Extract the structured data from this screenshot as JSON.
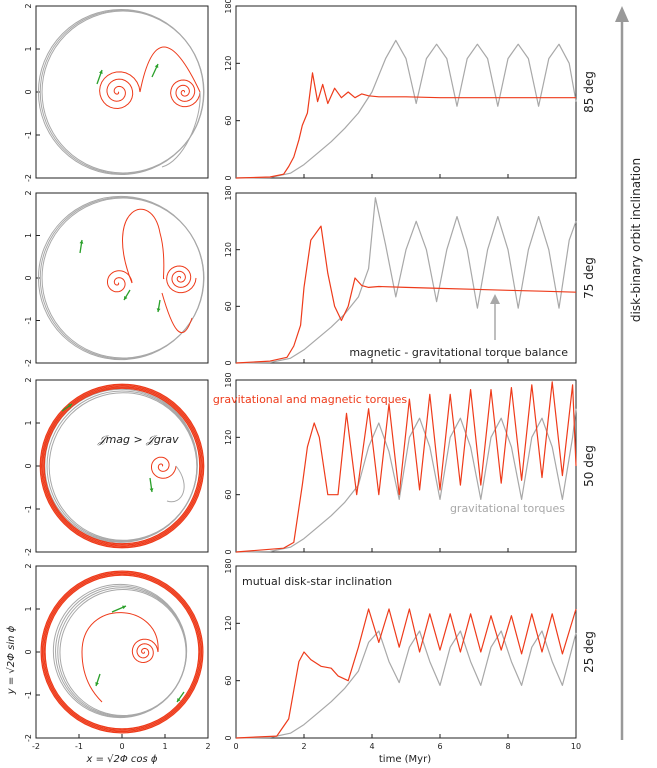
{
  "colors": {
    "red": "#ee3b1b",
    "gray": "#a8a8a8",
    "green": "#2aa02a",
    "frame": "#222222"
  },
  "chart_data": [
    {
      "type": "line",
      "panel": "top-right",
      "row_label": "85 deg",
      "xlim": [
        0,
        10
      ],
      "ylim": [
        0,
        180
      ],
      "yticks": [
        "0",
        "60",
        "120",
        "180"
      ],
      "series": [
        {
          "color": "#ee3b1b",
          "x": [
            0,
            1,
            1.4,
            1.55,
            1.7,
            1.85,
            1.95,
            2.1,
            2.25,
            2.4,
            2.55,
            2.7,
            2.9,
            3.1,
            3.3,
            3.5,
            3.7,
            3.9,
            4.2,
            5,
            6,
            7,
            8,
            9,
            10
          ],
          "y": [
            0,
            1,
            4,
            12,
            22,
            40,
            55,
            68,
            110,
            80,
            98,
            78,
            94,
            84,
            90,
            84,
            88,
            86,
            85,
            85,
            84,
            84,
            84,
            84,
            84
          ]
        },
        {
          "color": "#a8a8a8",
          "x": [
            0,
            1,
            1.6,
            2,
            2.4,
            2.8,
            3.2,
            3.6,
            4,
            4.4,
            4.7,
            5,
            5.3,
            5.6,
            5.9,
            6.2,
            6.5,
            6.8,
            7.1,
            7.4,
            7.7,
            8,
            8.3,
            8.6,
            8.9,
            9.2,
            9.5,
            9.8,
            10
          ],
          "y": [
            0,
            0.5,
            5,
            14,
            26,
            38,
            52,
            68,
            90,
            125,
            144,
            125,
            78,
            125,
            140,
            125,
            75,
            125,
            140,
            125,
            75,
            125,
            140,
            125,
            75,
            125,
            140,
            120,
            80
          ]
        }
      ]
    },
    {
      "type": "line",
      "panel": "second-right",
      "row_label": "75 deg",
      "annotation": "magnetic - gravitational torque balance",
      "xlim": [
        0,
        10
      ],
      "ylim": [
        0,
        180
      ],
      "yticks": [
        "0",
        "60",
        "120",
        "180"
      ],
      "series": [
        {
          "color": "#ee3b1b",
          "x": [
            0,
            1,
            1.5,
            1.7,
            1.9,
            2.0,
            2.2,
            2.5,
            2.7,
            2.9,
            3.1,
            3.3,
            3.5,
            3.7,
            3.9,
            4.2,
            5,
            6,
            7,
            8,
            9,
            10
          ],
          "y": [
            0,
            2,
            6,
            18,
            40,
            80,
            130,
            145,
            95,
            60,
            45,
            60,
            90,
            82,
            80,
            81,
            80,
            79,
            78,
            77,
            76,
            75
          ]
        },
        {
          "color": "#a8a8a8",
          "x": [
            0,
            1,
            1.6,
            2,
            2.4,
            2.8,
            3.2,
            3.6,
            3.9,
            4.1,
            4.4,
            4.7,
            5,
            5.3,
            5.6,
            5.9,
            6.2,
            6.5,
            6.8,
            7.1,
            7.4,
            7.7,
            8,
            8.3,
            8.6,
            8.9,
            9.2,
            9.5,
            9.8,
            10
          ],
          "y": [
            0,
            0.5,
            5,
            14,
            26,
            38,
            52,
            70,
            100,
            175,
            125,
            70,
            120,
            150,
            120,
            65,
            120,
            155,
            120,
            58,
            120,
            155,
            120,
            58,
            120,
            155,
            120,
            58,
            130,
            150
          ]
        }
      ]
    },
    {
      "type": "line",
      "panel": "third-right",
      "row_label": "50 deg",
      "annotation_red": "gravitational and magnetic torques",
      "annotation_gray": "gravitational torques",
      "xlim": [
        0,
        10
      ],
      "ylim": [
        0,
        180
      ],
      "yticks": [
        "0",
        "60",
        "120",
        "180"
      ],
      "series": [
        {
          "color": "#ee3b1b",
          "x": [
            0,
            1.4,
            1.7,
            1.95,
            2.1,
            2.3,
            2.45,
            2.7,
            3.0,
            3.25,
            3.55,
            3.9,
            4.2,
            4.5,
            4.8,
            5.1,
            5.4,
            5.7,
            6.0,
            6.3,
            6.6,
            6.9,
            7.2,
            7.5,
            7.8,
            8.1,
            8.4,
            8.7,
            9.0,
            9.3,
            9.6,
            9.9,
            10
          ],
          "y": [
            0,
            4,
            10,
            70,
            110,
            135,
            120,
            60,
            60,
            145,
            60,
            150,
            60,
            155,
            60,
            160,
            65,
            165,
            65,
            165,
            70,
            170,
            70,
            170,
            72,
            172,
            75,
            175,
            78,
            178,
            80,
            175,
            90
          ]
        },
        {
          "color": "#a8a8a8",
          "x": [
            0,
            1,
            1.6,
            2,
            2.4,
            2.8,
            3.2,
            3.6,
            3.9,
            4.2,
            4.5,
            4.8,
            5.1,
            5.4,
            5.7,
            6.0,
            6.3,
            6.6,
            6.9,
            7.2,
            7.5,
            7.8,
            8.1,
            8.4,
            8.7,
            9.0,
            9.3,
            9.6,
            9.9,
            10
          ],
          "y": [
            0,
            0.5,
            5,
            14,
            26,
            38,
            52,
            70,
            110,
            135,
            105,
            55,
            120,
            140,
            110,
            55,
            120,
            140,
            110,
            55,
            120,
            140,
            110,
            55,
            120,
            140,
            110,
            55,
            120,
            150
          ]
        }
      ]
    },
    {
      "type": "line",
      "panel": "bottom-right",
      "row_label": "25 deg",
      "annotation": "mutual disk-star inclination",
      "xlabel": "time (Myr)",
      "xlim": [
        0,
        10
      ],
      "ylim": [
        0,
        180
      ],
      "xticks": [
        "0",
        "2",
        "4",
        "6",
        "8",
        "10"
      ],
      "yticks": [
        "0",
        "60",
        "120",
        "180"
      ],
      "series": [
        {
          "color": "#ee3b1b",
          "x": [
            0,
            1.2,
            1.55,
            1.7,
            1.85,
            2.0,
            2.2,
            2.5,
            2.8,
            3.0,
            3.3,
            3.6,
            3.9,
            4.2,
            4.5,
            4.8,
            5.1,
            5.4,
            5.7,
            6.0,
            6.3,
            6.6,
            6.9,
            7.2,
            7.5,
            7.8,
            8.1,
            8.4,
            8.7,
            9.0,
            9.3,
            9.6,
            10
          ],
          "y": [
            0,
            2,
            20,
            50,
            80,
            90,
            82,
            75,
            73,
            65,
            60,
            95,
            135,
            100,
            135,
            95,
            135,
            90,
            130,
            92,
            130,
            90,
            130,
            90,
            128,
            92,
            128,
            88,
            130,
            90,
            130,
            88,
            135
          ]
        },
        {
          "color": "#a8a8a8",
          "x": [
            0,
            1,
            1.6,
            2,
            2.4,
            2.8,
            3.2,
            3.6,
            3.9,
            4.2,
            4.5,
            4.8,
            5.1,
            5.4,
            5.7,
            6.0,
            6.3,
            6.6,
            6.9,
            7.2,
            7.5,
            7.8,
            8.1,
            8.4,
            8.7,
            9.0,
            9.3,
            9.6,
            10
          ],
          "y": [
            0,
            0.5,
            5,
            14,
            26,
            38,
            52,
            70,
            100,
            112,
            80,
            58,
            95,
            112,
            80,
            55,
            95,
            112,
            80,
            55,
            95,
            112,
            80,
            55,
            95,
            112,
            80,
            55,
            110
          ]
        }
      ]
    }
  ],
  "left_panels": {
    "xlim": [
      -2,
      2
    ],
    "ylim": [
      -2,
      2
    ],
    "yticks": [
      "-2",
      "-1",
      "0",
      "1",
      "2"
    ],
    "xticks": [
      "-2",
      "-1",
      "0",
      "1",
      "2"
    ],
    "ylabel": "y = √2Φ sin ϕ",
    "xlabel": "x = √2Φ cos ϕ",
    "third_annotation": "𝒥mag > 𝒥grav"
  },
  "side_label": "disk-binary orbit inclination"
}
